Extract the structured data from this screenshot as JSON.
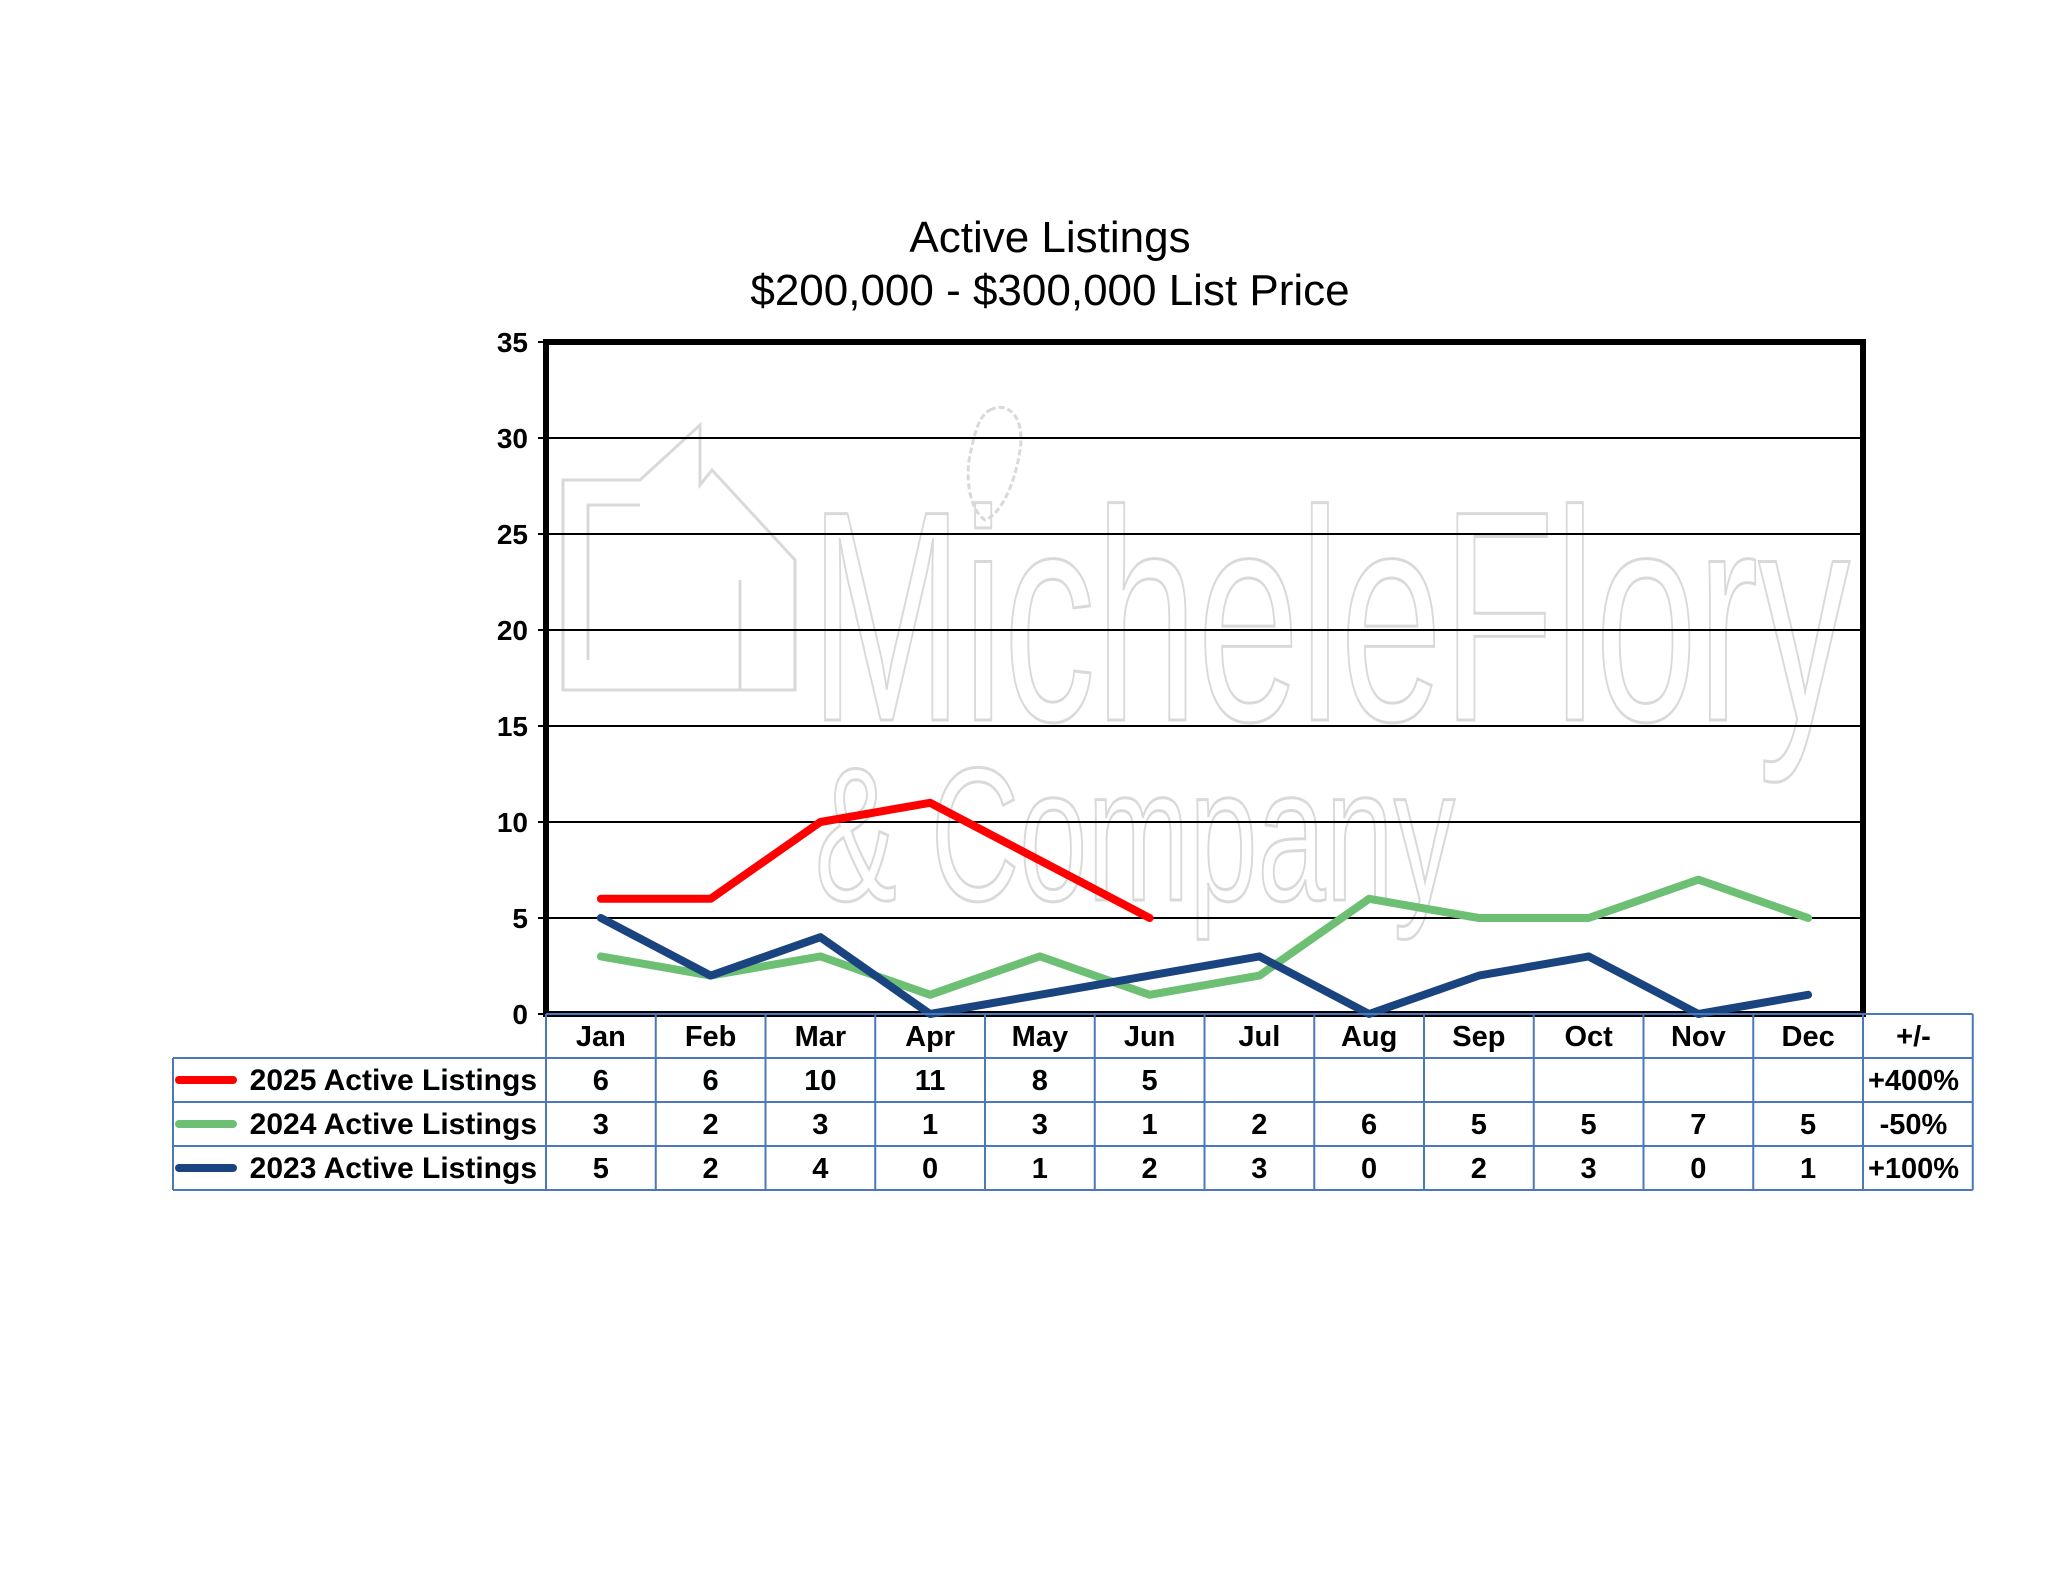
{
  "chart_data": {
    "type": "line",
    "title": "Active Listings",
    "subtitle": "$200,000 - $300,000 List Price",
    "categories": [
      "Jan",
      "Feb",
      "Mar",
      "Apr",
      "May",
      "Jun",
      "Jul",
      "Aug",
      "Sep",
      "Oct",
      "Nov",
      "Dec"
    ],
    "change_header": "+/-",
    "ylim": [
      0,
      35
    ],
    "yticks": [
      0,
      5,
      10,
      15,
      20,
      25,
      30,
      35
    ],
    "grid": true,
    "legend": "data-table",
    "series": [
      {
        "name": "2025 Active Listings",
        "color": "#ff0000",
        "values": [
          6,
          6,
          10,
          11,
          8,
          5,
          null,
          null,
          null,
          null,
          null,
          null
        ],
        "change": "+400%"
      },
      {
        "name": "2024 Active Listings",
        "color": "#6dbf74",
        "values": [
          3,
          2,
          3,
          1,
          3,
          1,
          2,
          6,
          5,
          5,
          7,
          5
        ],
        "change": "-50%"
      },
      {
        "name": "2023 Active Listings",
        "color": "#1a4480",
        "values": [
          5,
          2,
          4,
          0,
          1,
          2,
          3,
          0,
          2,
          3,
          0,
          1
        ],
        "change": "+100%"
      }
    ]
  },
  "watermark": {
    "line1": "MicheleFlory",
    "line2": "& Company"
  },
  "colors": {
    "table_border": "#4a78b8",
    "grid": "#000000",
    "watermark": "#d9d9d9"
  }
}
